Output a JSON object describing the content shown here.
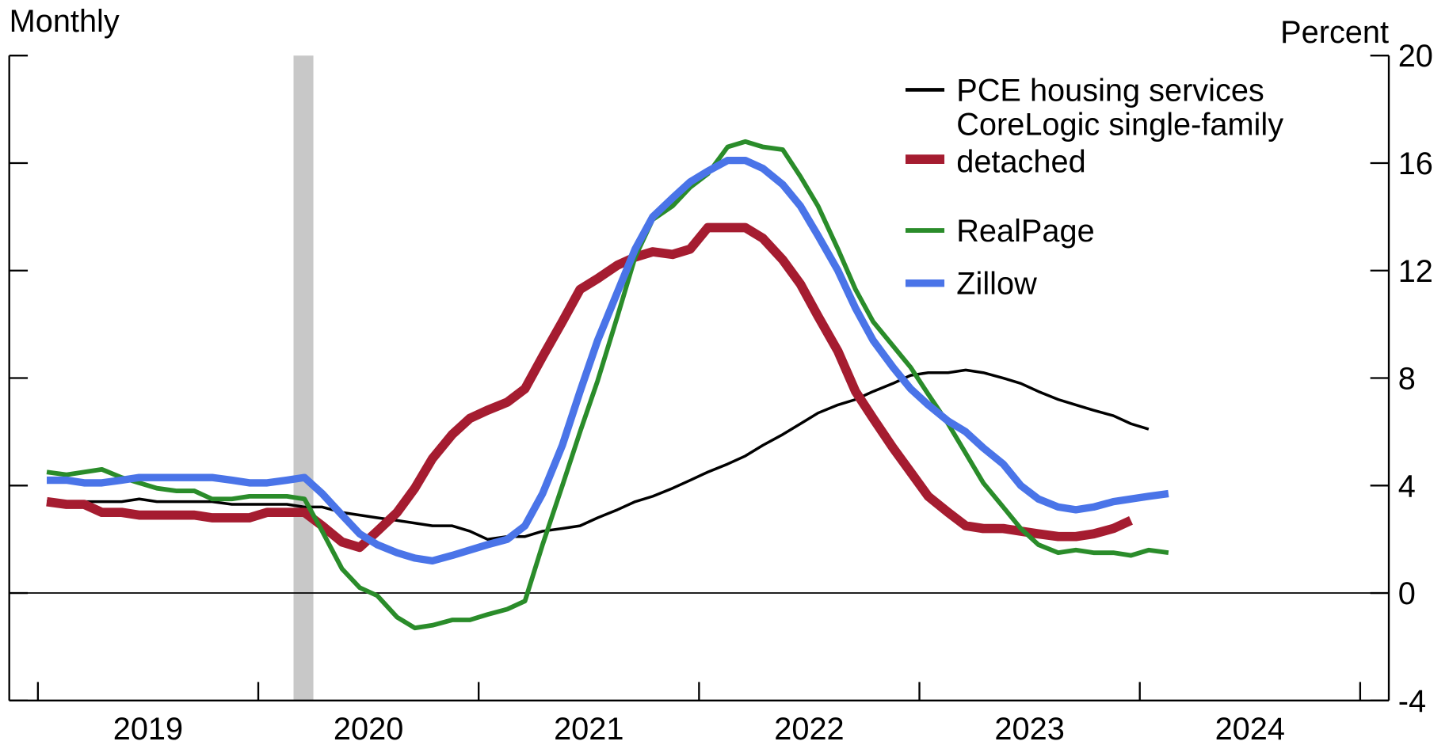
{
  "chart_data": {
    "type": "line",
    "left_label": "Monthly",
    "right_label": "Percent",
    "x": [
      2019.04,
      2019.13,
      2019.21,
      2019.29,
      2019.38,
      2019.46,
      2019.54,
      2019.63,
      2019.71,
      2019.79,
      2019.88,
      2019.96,
      2020.04,
      2020.13,
      2020.21,
      2020.29,
      2020.38,
      2020.46,
      2020.54,
      2020.63,
      2020.71,
      2020.79,
      2020.88,
      2020.96,
      2021.04,
      2021.13,
      2021.21,
      2021.29,
      2021.38,
      2021.46,
      2021.54,
      2021.63,
      2021.71,
      2021.79,
      2021.88,
      2021.96,
      2022.04,
      2022.13,
      2022.21,
      2022.29,
      2022.38,
      2022.46,
      2022.54,
      2022.63,
      2022.71,
      2022.79,
      2022.88,
      2022.96,
      2023.04,
      2023.13,
      2023.21,
      2023.29,
      2023.38,
      2023.46,
      2023.54,
      2023.63,
      2023.71,
      2023.79,
      2023.88,
      2023.96,
      2024.04,
      2024.13
    ],
    "series": [
      {
        "name": "PCE housing services",
        "color": "#000000",
        "width": 3,
        "values": [
          3.4,
          3.4,
          3.4,
          3.4,
          3.4,
          3.5,
          3.4,
          3.4,
          3.4,
          3.4,
          3.3,
          3.3,
          3.3,
          3.3,
          3.2,
          3.2,
          3.0,
          2.9,
          2.8,
          2.7,
          2.6,
          2.5,
          2.5,
          2.3,
          2.0,
          2.1,
          2.1,
          2.3,
          2.4,
          2.5,
          2.8,
          3.1,
          3.4,
          3.6,
          3.9,
          4.2,
          4.5,
          4.8,
          5.1,
          5.5,
          5.9,
          6.3,
          6.7,
          7.0,
          7.2,
          7.5,
          7.8,
          8.1,
          8.2,
          8.2,
          8.3,
          8.2,
          8.0,
          7.8,
          7.5,
          7.2,
          7.0,
          6.8,
          6.6,
          6.3,
          6.1,
          null
        ]
      },
      {
        "name": "CoreLogic single-family detached",
        "color": "#a51c30",
        "width": 10,
        "values": [
          3.4,
          3.3,
          3.3,
          3.0,
          3.0,
          2.9,
          2.9,
          2.9,
          2.9,
          2.8,
          2.8,
          2.8,
          3.0,
          3.0,
          3.0,
          2.5,
          1.9,
          1.7,
          2.3,
          3.0,
          3.9,
          5.0,
          5.9,
          6.5,
          6.8,
          7.1,
          7.6,
          8.8,
          10.1,
          11.3,
          11.7,
          12.2,
          12.5,
          12.7,
          12.6,
          12.8,
          13.6,
          13.6,
          13.6,
          13.2,
          12.4,
          11.5,
          10.3,
          9.0,
          7.5,
          6.5,
          5.4,
          4.5,
          3.6,
          3.0,
          2.5,
          2.4,
          2.4,
          2.3,
          2.2,
          2.1,
          2.1,
          2.2,
          2.4,
          2.7,
          null,
          null
        ]
      },
      {
        "name": "RealPage",
        "color": "#2a8c2a",
        "width": 5,
        "values": [
          4.5,
          4.4,
          4.5,
          4.6,
          4.3,
          4.1,
          3.9,
          3.8,
          3.8,
          3.5,
          3.5,
          3.6,
          3.6,
          3.6,
          3.5,
          2.3,
          0.9,
          0.2,
          -0.1,
          -0.9,
          -1.3,
          -1.2,
          -1.0,
          -1.0,
          -0.8,
          -0.6,
          -0.3,
          1.8,
          4.0,
          6.0,
          7.9,
          10.3,
          12.5,
          13.9,
          14.4,
          15.1,
          15.6,
          16.6,
          16.8,
          16.6,
          16.5,
          15.5,
          14.4,
          12.8,
          11.3,
          10.1,
          9.2,
          8.4,
          7.4,
          6.3,
          5.2,
          4.1,
          3.2,
          2.4,
          1.8,
          1.5,
          1.6,
          1.5,
          1.5,
          1.4,
          1.6,
          1.5
        ]
      },
      {
        "name": "Zillow",
        "color": "#4a74e8",
        "width": 8,
        "values": [
          4.2,
          4.2,
          4.1,
          4.1,
          4.2,
          4.3,
          4.3,
          4.3,
          4.3,
          4.3,
          4.2,
          4.1,
          4.1,
          4.2,
          4.3,
          3.7,
          2.9,
          2.2,
          1.8,
          1.5,
          1.3,
          1.2,
          1.4,
          1.6,
          1.8,
          2.0,
          2.5,
          3.7,
          5.5,
          7.5,
          9.4,
          11.2,
          12.8,
          14.0,
          14.7,
          15.3,
          15.7,
          16.1,
          16.1,
          15.8,
          15.2,
          14.4,
          13.3,
          12.0,
          10.6,
          9.4,
          8.4,
          7.6,
          7.0,
          6.4,
          6.0,
          5.4,
          4.8,
          4.0,
          3.5,
          3.2,
          3.1,
          3.2,
          3.4,
          3.5,
          3.6,
          3.7
        ]
      }
    ],
    "recession": [
      2020.16,
      2020.25
    ],
    "recession_color": "#c8c8c8",
    "xlim": [
      2018.87,
      2025.13
    ],
    "xticks": [
      {
        "value": 2019.5,
        "label": "2019"
      },
      {
        "value": 2020.5,
        "label": "2020"
      },
      {
        "value": 2021.5,
        "label": "2021"
      },
      {
        "value": 2022.5,
        "label": "2022"
      },
      {
        "value": 2023.5,
        "label": "2023"
      },
      {
        "value": 2024.5,
        "label": "2024"
      }
    ],
    "ylim": [
      -4,
      20
    ],
    "yticks": [
      -4,
      0,
      4,
      8,
      12,
      16,
      20
    ],
    "zero_line": 0,
    "legend": "upper right"
  }
}
